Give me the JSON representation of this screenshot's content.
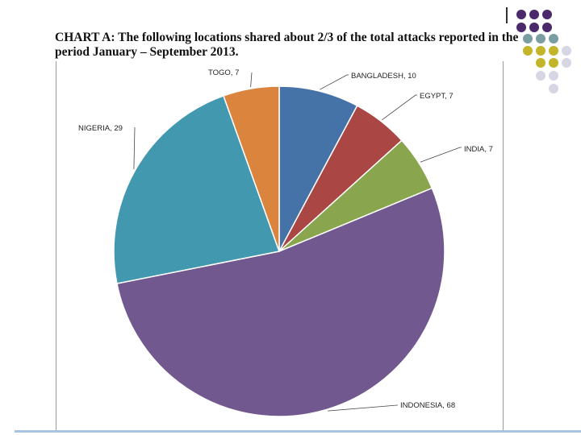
{
  "title": "CHART A: The following locations shared about 2/3 of the total attacks reported in the period January – September 2013.",
  "chart_data": {
    "type": "pie",
    "title": "CHART A: The following locations shared about 2/3 of the total attacks reported in the period January – September 2013.",
    "slices": [
      {
        "label": "BANGLADESH, 10",
        "value": 10,
        "color": "#4572a7"
      },
      {
        "label": "EGYPT, 7",
        "value": 7,
        "color": "#aa4643"
      },
      {
        "label": "INDIA, 7",
        "value": 7,
        "color": "#89a54e"
      },
      {
        "label": "INDONESIA, 68",
        "value": 68,
        "color": "#71588f"
      },
      {
        "label": "NIGERIA, 29",
        "value": 29,
        "color": "#4198af"
      },
      {
        "label": "TOGO, 7",
        "value": 7,
        "color": "#db843d"
      }
    ]
  },
  "decor": {
    "dot_colors": [
      "#4a2a6b",
      "#7a9ea3",
      "#c2b52a",
      "#d6d6e4"
    ]
  }
}
